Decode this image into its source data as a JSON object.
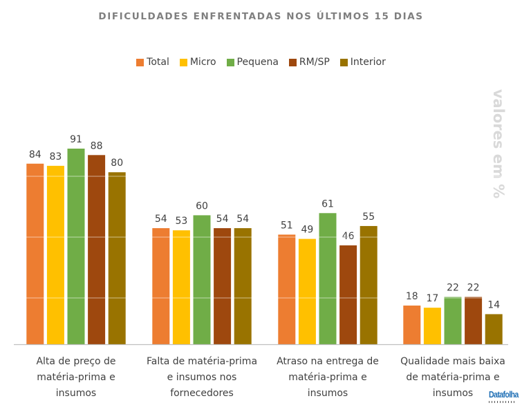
{
  "chart_data": {
    "type": "bar",
    "title": "DIFICULDADES ENFRENTADAS NOS ÚLTIMOS 15 DIAS",
    "side_label": "valores em %",
    "xlabel": "",
    "ylabel": "valores em %",
    "ylim": [
      0,
      100
    ],
    "grid": true,
    "legend_position": "top-center",
    "categories": [
      [
        "Alta de preço de",
        "matéria-prima e",
        "insumos"
      ],
      [
        "Falta de matéria-prima",
        "e insumos nos",
        "fornecedores"
      ],
      [
        "Atraso na entrega de",
        "matéria-prima e",
        "insumos"
      ],
      [
        "Qualidade mais baixa",
        "de matéria-prima e",
        "insumos"
      ]
    ],
    "series": [
      {
        "name": "Total",
        "color": "#ed7d31",
        "values": [
          84,
          54,
          51,
          18
        ]
      },
      {
        "name": "Micro",
        "color": "#ffc000",
        "values": [
          83,
          53,
          49,
          17
        ]
      },
      {
        "name": "Pequena",
        "color": "#70ad47",
        "values": [
          91,
          60,
          61,
          22
        ]
      },
      {
        "name": "RM/SP",
        "color": "#9e480e",
        "values": [
          88,
          54,
          46,
          22
        ]
      },
      {
        "name": "Interior",
        "color": "#997300",
        "values": [
          80,
          54,
          55,
          14
        ]
      }
    ]
  },
  "logo": {
    "text": "Datafolha"
  }
}
